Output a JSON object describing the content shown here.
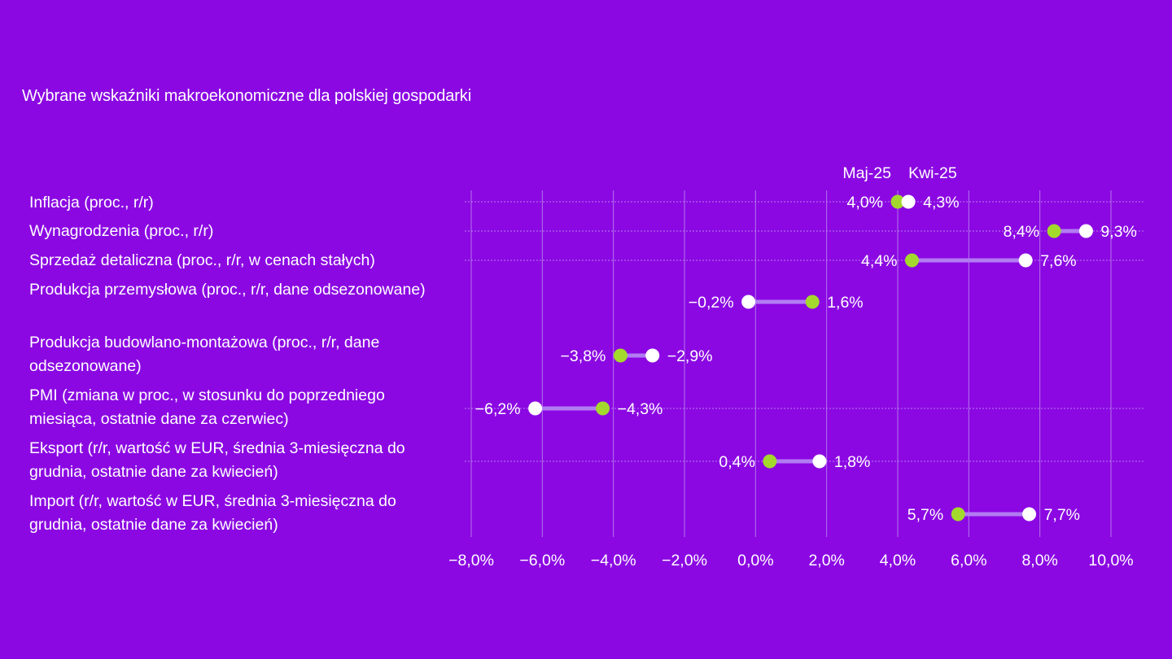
{
  "colors": {
    "background": "#8b08e2",
    "current_marker": "#a3d92d",
    "previous_marker": "#ffffff",
    "connector": "#b27cf2",
    "grid": "#c49af0"
  },
  "chart_data": {
    "type": "dumbbell",
    "title": "Wybrane wskaźniki makroekonomiczne dla polskiej gospodarki",
    "legend": {
      "current": "Maj-25",
      "previous": "Kwi-25",
      "placement": "top"
    },
    "xlim": [
      -8,
      10
    ],
    "xticks": [
      -8,
      -6,
      -4,
      -2,
      0,
      2,
      4,
      6,
      8,
      10
    ],
    "xtick_labels": [
      "−8,0%",
      "−6,0%",
      "−4,0%",
      "−2,0%",
      "0,0%",
      "2,0%",
      "4,0%",
      "6,0%",
      "8,0%",
      "10,0%"
    ],
    "grid": true,
    "rows": [
      {
        "label": "Inflacja (proc., r/r)",
        "current": 4.0,
        "previous": 4.3,
        "current_label": "4,0%",
        "previous_label": "4,3%"
      },
      {
        "label": "Wynagrodzenia (proc., r/r)",
        "current": 8.4,
        "previous": 9.3,
        "current_label": "8,4%",
        "previous_label": "9,3%"
      },
      {
        "label": "Sprzedaż detaliczna (proc., r/r, w cenach stałych)",
        "current": 4.4,
        "previous": 7.6,
        "current_label": "4,4%",
        "previous_label": "7,6%"
      },
      {
        "label": "Produkcja przemysłowa (proc., r/r, dane odsezonowane)",
        "current": 1.6,
        "previous": -0.2,
        "current_label": "1,6%",
        "previous_label": "−0,2%"
      },
      {
        "label": "Produkcja budowlano-montażowa (proc., r/r, dane odsezonowane)",
        "current": -3.8,
        "previous": -2.9,
        "current_label": "−3,8%",
        "previous_label": "−2,9%"
      },
      {
        "label": "PMI (zmiana w proc., w stosunku do poprzedniego miesiąca, ostatnie dane za czerwiec)",
        "current": -4.3,
        "previous": -6.2,
        "current_label": "−4,3%",
        "previous_label": "−6,2%"
      },
      {
        "label": "Eksport (r/r, wartość w EUR, średnia 3-miesięczna do grudnia, ostatnie dane za kwiecień)",
        "current": 0.4,
        "previous": 1.8,
        "current_label": "0,4%",
        "previous_label": "1,8%"
      },
      {
        "label": "Import (r/r, wartość w EUR, średnia 3-miesięczna do grudnia, ostatnie dane za kwiecień)",
        "current": 5.7,
        "previous": 7.7,
        "current_label": "5,7%",
        "previous_label": "7,7%"
      }
    ]
  }
}
